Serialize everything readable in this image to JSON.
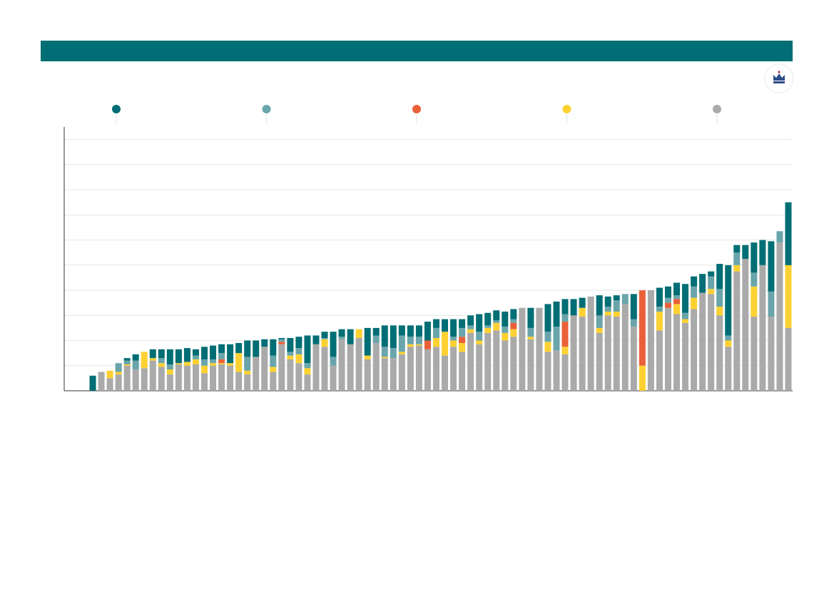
{
  "chart_data": {
    "type": "stacked_bar",
    "categories": [
      null,
      null,
      null,
      null,
      null,
      null,
      null,
      null,
      null,
      null,
      null,
      null,
      null,
      null,
      null,
      null,
      null,
      null,
      null,
      null,
      null,
      null,
      null,
      null,
      null,
      null,
      null,
      null,
      null,
      null,
      null,
      null,
      null,
      null,
      null,
      null,
      null,
      null,
      null,
      null,
      null,
      null,
      null,
      null,
      null,
      null,
      null,
      null,
      null,
      null,
      null,
      null,
      null,
      null,
      null,
      null,
      null,
      null,
      null,
      null,
      null,
      null,
      null,
      null,
      null,
      null,
      null,
      null,
      null,
      null,
      null,
      null,
      null,
      null,
      null,
      null,
      null,
      null,
      null,
      null,
      null,
      null
    ],
    "series": [
      {
        "color": "#006e74",
        "values": [
          0.6,
          null,
          null,
          null,
          0.1,
          0.25,
          null,
          0.35,
          0.35,
          0.6,
          0.55,
          0.55,
          0.25,
          0.5,
          0.55,
          0.35,
          0.75,
          0.4,
          0.65,
          0.65,
          0.3,
          0.65,
          0.05,
          0.55,
          0.45,
          1.1,
          0.35,
          0.25,
          1.0,
          0.3,
          0.6,
          null,
          1.1,
          0.3,
          0.85,
          0.9,
          0.4,
          0.45,
          0.45,
          0.75,
          0.35,
          0.5,
          0.7,
          0.35,
          0.4,
          0.7,
          0.5,
          0.4,
          0.6,
          0.4,
          null,
          0.8,
          null,
          1.1,
          1.0,
          0.6,
          0.65,
          0.4,
          null,
          0.8,
          0.4,
          0.2,
          null,
          1.0,
          null,
          null,
          0.75,
          0.45,
          0.5,
          1.15,
          0.4,
          0.75,
          0.2,
          1.0,
          2.8,
          0.3,
          0.55,
          1.2,
          1.0,
          2.0,
          null,
          2.5
        ]
      },
      {
        "color": "#6aa5ab",
        "values": [
          null,
          null,
          null,
          0.35,
          0.15,
          0.35,
          null,
          null,
          0.2,
          0.2,
          null,
          null,
          0.15,
          0.25,
          0.15,
          0.25,
          null,
          null,
          0.55,
          null,
          null,
          0.45,
          0.1,
          0.15,
          0.25,
          0.2,
          null,
          0.05,
          0.35,
          0.1,
          null,
          null,
          null,
          0.3,
          0.4,
          0.4,
          0.65,
          0.3,
          0.3,
          null,
          0.4,
          null,
          0.15,
          0.35,
          0.15,
          0.35,
          0.1,
          0.1,
          0.25,
          0.15,
          null,
          0.35,
          null,
          0.4,
          0.95,
          0.3,
          null,
          null,
          null,
          0.5,
          0.2,
          0.45,
          0.4,
          0.3,
          null,
          null,
          0.2,
          0.2,
          0.15,
          0.25,
          0.45,
          null,
          0.5,
          0.7,
          0.2,
          0.5,
          null,
          0.55,
          null,
          1.0,
          0.45,
          null
        ]
      },
      {
        "color": "#ea6139",
        "values": [
          null,
          null,
          null,
          null,
          null,
          null,
          null,
          null,
          null,
          null,
          null,
          null,
          null,
          null,
          null,
          0.15,
          null,
          null,
          null,
          null,
          null,
          null,
          0.1,
          null,
          null,
          null,
          null,
          null,
          null,
          null,
          null,
          null,
          null,
          null,
          null,
          null,
          null,
          null,
          null,
          0.35,
          null,
          null,
          null,
          0.25,
          null,
          null,
          null,
          null,
          null,
          0.25,
          null,
          null,
          null,
          null,
          null,
          1.0,
          null,
          null,
          null,
          null,
          null,
          null,
          null,
          null,
          3.0,
          null,
          null,
          0.2,
          0.2,
          null,
          null,
          null,
          null,
          null,
          null,
          null,
          null,
          null,
          null,
          null,
          null,
          null
        ]
      },
      {
        "color": "#fdd132",
        "values": [
          null,
          null,
          0.3,
          0.1,
          0.05,
          null,
          0.65,
          0.1,
          0.15,
          0.2,
          0.05,
          0.15,
          0.2,
          0.3,
          0.1,
          0.05,
          0.1,
          0.75,
          0.15,
          null,
          null,
          0.2,
          null,
          0.15,
          0.35,
          0.25,
          null,
          0.3,
          null,
          null,
          null,
          0.35,
          0.15,
          null,
          0.05,
          null,
          0.1,
          0.1,
          0.05,
          null,
          0.35,
          0.95,
          0.25,
          0.35,
          0.15,
          0.15,
          0.2,
          0.3,
          0.3,
          0.3,
          null,
          0.1,
          null,
          0.4,
          null,
          0.3,
          null,
          0.35,
          null,
          0.2,
          0.15,
          0.2,
          null,
          null,
          1.0,
          null,
          0.75,
          null,
          0.4,
          0.15,
          0.45,
          null,
          0.2,
          0.35,
          0.25,
          0.25,
          null,
          1.2,
          null,
          null,
          null,
          2.5
        ]
      },
      {
        "color": "#aaaaaa",
        "values": [
          null,
          0.75,
          0.5,
          0.65,
          1.0,
          0.85,
          0.9,
          1.2,
          0.95,
          0.65,
          1.05,
          1.0,
          1.05,
          0.7,
          1.0,
          1.05,
          1.0,
          0.75,
          0.65,
          1.35,
          1.75,
          0.75,
          1.85,
          1.25,
          1.1,
          0.65,
          1.85,
          1.75,
          1.0,
          2.05,
          1.85,
          2.1,
          1.25,
          1.9,
          1.3,
          1.3,
          1.45,
          1.75,
          1.8,
          1.65,
          1.75,
          1.4,
          1.75,
          1.55,
          2.3,
          1.85,
          2.3,
          2.4,
          2.0,
          2.15,
          3.3,
          2.05,
          3.3,
          1.55,
          1.6,
          1.45,
          3.0,
          2.95,
          3.75,
          2.3,
          3.0,
          2.95,
          3.45,
          2.55,
          null,
          4.0,
          2.4,
          3.3,
          3.05,
          2.7,
          3.25,
          3.9,
          3.85,
          3.0,
          1.75,
          4.75,
          5.25,
          2.95,
          5.0,
          2.95,
          5.9,
          2.5
        ]
      }
    ],
    "ylim": [
      0,
      10.5
    ],
    "yticks": [
      1,
      2,
      3,
      4,
      5,
      6,
      7,
      8,
      9,
      10
    ],
    "grid": true
  }
}
